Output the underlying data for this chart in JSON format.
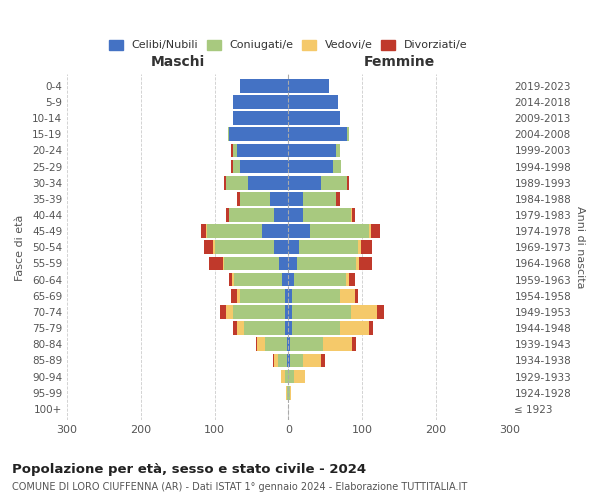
{
  "age_groups": [
    "100+",
    "95-99",
    "90-94",
    "85-89",
    "80-84",
    "75-79",
    "70-74",
    "65-69",
    "60-64",
    "55-59",
    "50-54",
    "45-49",
    "40-44",
    "35-39",
    "30-34",
    "25-29",
    "20-24",
    "15-19",
    "10-14",
    "5-9",
    "0-4"
  ],
  "birth_years": [
    "≤ 1923",
    "1924-1928",
    "1929-1933",
    "1934-1938",
    "1939-1943",
    "1944-1948",
    "1949-1953",
    "1954-1958",
    "1959-1963",
    "1964-1968",
    "1969-1973",
    "1974-1978",
    "1979-1983",
    "1984-1988",
    "1989-1993",
    "1994-1998",
    "1999-2003",
    "2004-2008",
    "2009-2013",
    "2014-2018",
    "2019-2023"
  ],
  "males": {
    "celibi": [
      0,
      0,
      0,
      2,
      2,
      5,
      5,
      5,
      8,
      12,
      20,
      35,
      20,
      25,
      55,
      65,
      70,
      80,
      75,
      75,
      65
    ],
    "coniugati": [
      0,
      2,
      5,
      12,
      30,
      55,
      70,
      60,
      65,
      75,
      80,
      75,
      60,
      40,
      30,
      10,
      5,
      2,
      0,
      0,
      0
    ],
    "vedovi": [
      0,
      1,
      5,
      5,
      10,
      10,
      10,
      5,
      3,
      2,
      2,
      1,
      0,
      0,
      0,
      0,
      0,
      0,
      0,
      0,
      0
    ],
    "divorziati": [
      0,
      0,
      0,
      2,
      2,
      5,
      8,
      8,
      5,
      18,
      12,
      8,
      5,
      5,
      2,
      2,
      2,
      0,
      0,
      0,
      0
    ]
  },
  "females": {
    "nubili": [
      0,
      0,
      0,
      2,
      2,
      5,
      5,
      5,
      8,
      12,
      15,
      30,
      20,
      20,
      45,
      60,
      65,
      80,
      70,
      68,
      55
    ],
    "coniugate": [
      0,
      2,
      8,
      18,
      45,
      65,
      80,
      65,
      70,
      80,
      80,
      80,
      65,
      45,
      35,
      12,
      5,
      2,
      0,
      0,
      0
    ],
    "vedove": [
      0,
      2,
      15,
      25,
      40,
      40,
      35,
      20,
      5,
      4,
      3,
      2,
      1,
      0,
      0,
      0,
      0,
      0,
      0,
      0,
      0
    ],
    "divorziate": [
      0,
      0,
      0,
      5,
      5,
      5,
      10,
      5,
      8,
      18,
      15,
      12,
      5,
      5,
      2,
      0,
      0,
      0,
      0,
      0,
      0
    ]
  },
  "colors": {
    "celibi": "#4472c4",
    "coniugati": "#a8c97f",
    "vedovi": "#f5c96a",
    "divorziati": "#c0392b"
  },
  "title": "Popolazione per età, sesso e stato civile - 2024",
  "subtitle": "COMUNE DI LORO CIUFFENNA (AR) - Dati ISTAT 1° gennaio 2024 - Elaborazione TUTTITALIA.IT",
  "xlim": 300,
  "ylabel_left": "Fasce di età",
  "ylabel_right": "Anni di nascita",
  "xlabel_left": "Maschi",
  "xlabel_right": "Femmine",
  "legend_labels": [
    "Celibi/Nubili",
    "Coniugati/e",
    "Vedovi/e",
    "Divorziati/e"
  ],
  "background_color": "#ffffff",
  "grid_color": "#cccccc"
}
